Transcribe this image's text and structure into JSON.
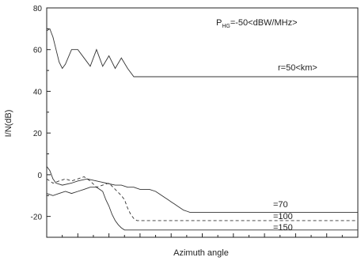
{
  "chart_data": {
    "type": "line",
    "title": "",
    "xlabel": "Azimuth angle",
    "ylabel": "I/N(dB)",
    "xlim": [
      0,
      100
    ],
    "ylim": [
      -30,
      80
    ],
    "y_ticks": [
      -20,
      0,
      20,
      40,
      60,
      80
    ],
    "y_tick_labels": [
      "-20",
      "0",
      "20",
      "40",
      "60",
      "80"
    ],
    "grid": false,
    "legend": "none",
    "annotations": {
      "power_main": "P",
      "power_sub": "HG",
      "power_rest": "=-50<dBW/MHz>",
      "r50": "r=50<km>",
      "r70": "=70",
      "r100": "=100",
      "r150": "=150"
    },
    "series": [
      {
        "style": "solid",
        "x": [
          0,
          1,
          2,
          3,
          4,
          5,
          6,
          8,
          10,
          12,
          14,
          16,
          18,
          20,
          22,
          24,
          26,
          28,
          30,
          32,
          34,
          36,
          38,
          40,
          42,
          44,
          46,
          48,
          50,
          60,
          70,
          80,
          90,
          100
        ],
        "y": [
          69,
          70,
          66,
          60,
          54,
          51,
          53,
          60,
          60,
          56,
          52,
          60,
          52,
          57,
          51,
          56,
          51,
          47,
          47,
          47,
          47,
          47,
          47,
          47,
          47,
          47,
          47,
          47,
          47,
          47,
          47,
          47,
          47,
          47
        ]
      },
      {
        "style": "solid",
        "x": [
          0,
          1,
          2,
          3,
          5,
          8,
          10,
          13,
          16,
          19,
          22,
          24,
          26,
          28,
          30,
          33,
          35,
          36,
          37,
          38,
          39,
          40,
          41,
          42,
          43,
          44,
          45,
          46,
          47,
          50,
          55,
          60,
          65,
          70,
          75,
          80,
          85,
          90,
          95,
          100
        ],
        "y": [
          4,
          2,
          -2,
          -4,
          -5,
          -4,
          -3,
          -2,
          -3,
          -4,
          -5,
          -5,
          -6,
          -6,
          -7,
          -7,
          -8,
          -9,
          -10,
          -11,
          -12,
          -13,
          -14,
          -15,
          -16,
          -17,
          -17.5,
          -18,
          -18,
          -18,
          -18,
          -18,
          -18,
          -18,
          -18,
          -18,
          -18,
          -18,
          -18,
          -18
        ]
      },
      {
        "style": "dashed",
        "x": [
          0,
          2,
          4,
          6,
          8,
          10,
          12,
          14,
          16,
          18,
          20,
          22,
          24,
          25,
          26,
          27,
          28,
          29,
          30,
          35,
          40,
          50,
          60,
          70,
          80,
          90,
          100
        ],
        "y": [
          -2,
          -4,
          -3,
          -2,
          -3,
          -2,
          -1,
          -3,
          -6,
          -5,
          -4,
          -7,
          -10,
          -12,
          -16,
          -19,
          -21,
          -22,
          -22,
          -22,
          -22,
          -22,
          -22,
          -22,
          -22,
          -22,
          -22
        ]
      },
      {
        "style": "solid",
        "x": [
          0,
          2,
          4,
          6,
          8,
          10,
          12,
          14,
          16,
          18,
          19,
          20,
          21,
          22,
          23,
          24,
          25,
          30,
          40,
          50,
          60,
          70,
          80,
          90,
          100
        ],
        "y": [
          -9,
          -10,
          -9,
          -8,
          -9,
          -8,
          -7,
          -6,
          -6,
          -8,
          -12,
          -15,
          -19,
          -22,
          -24,
          -25.5,
          -26.5,
          -26.5,
          -26.5,
          -26.5,
          -26.5,
          -26.5,
          -26.5,
          -26.5,
          -26.5
        ]
      }
    ]
  }
}
